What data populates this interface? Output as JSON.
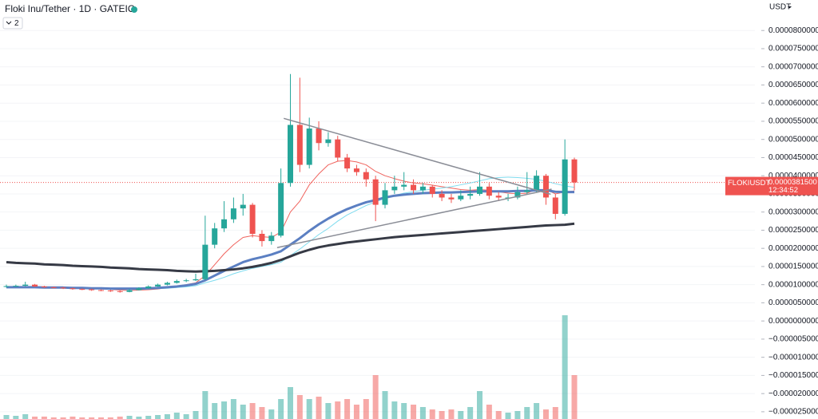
{
  "chart_data": {
    "type": "candlestick",
    "title": "Floki Inu/Tether · 1D · GATEIO",
    "indicators_toggle": "2",
    "currency": "USDT",
    "symbol": "FLOKIUSDT",
    "countdown": "12:34:52",
    "last_price": {
      "value": 3.815e-05,
      "label": "0.0000381500"
    },
    "up_color": "#26a69a",
    "down_color": "#ef5350",
    "grid": true,
    "ylim": [
      -2.7e-05,
      8.84e-05
    ],
    "yticks": [
      {
        "value": 8e-05,
        "label": "0.0000800000"
      },
      {
        "value": 7.5e-05,
        "label": "0.0000750000"
      },
      {
        "value": 7e-05,
        "label": "0.0000700000"
      },
      {
        "value": 6.5e-05,
        "label": "0.0000650000"
      },
      {
        "value": 6e-05,
        "label": "0.0000600000"
      },
      {
        "value": 5.5e-05,
        "label": "0.0000550000"
      },
      {
        "value": 5e-05,
        "label": "0.0000500000"
      },
      {
        "value": 4.5e-05,
        "label": "0.0000450000"
      },
      {
        "value": 4e-05,
        "label": "0.0000400000"
      },
      {
        "value": 3.5e-05,
        "label": "0.0000350000"
      },
      {
        "value": 3e-05,
        "label": "0.0000300000"
      },
      {
        "value": 2.5e-05,
        "label": "0.0000250000"
      },
      {
        "value": 2e-05,
        "label": "0.0000200000"
      },
      {
        "value": 1.5e-05,
        "label": "0.0000150000"
      },
      {
        "value": 1e-05,
        "label": "0.0000100000"
      },
      {
        "value": 5e-06,
        "label": "0.0000050000"
      },
      {
        "value": 0,
        "label": "0.0000000000"
      },
      {
        "value": -5e-06,
        "label": "−0.0000050000"
      },
      {
        "value": -1e-05,
        "label": "−0.0000100000"
      },
      {
        "value": -1.5e-05,
        "label": "−0.0000150000"
      },
      {
        "value": -2e-05,
        "label": "−0.0000200000"
      },
      {
        "value": -2.5e-05,
        "label": "−0.0000250000"
      }
    ],
    "open": [
      9.4e-06,
      9.6e-06,
      9.7e-06,
      1e-05,
      9.5e-06,
      9.3e-06,
      9.2e-06,
      9e-06,
      8.8e-06,
      8.7e-06,
      8.5e-06,
      8.4e-06,
      8.2e-06,
      8e-06,
      8.5e-06,
      9e-06,
      9.5e-06,
      1e-05,
      1.05e-05,
      1.1e-05,
      1.12e-05,
      1.15e-05,
      2.1e-05,
      2.55e-05,
      2.8e-05,
      3.1e-05,
      3.2e-05,
      2.4e-05,
      2.2e-05,
      2.35e-05,
      3.8e-05,
      5.4e-05,
      4.3e-05,
      5.3e-05,
      4.9e-05,
      5e-05,
      4.5e-05,
      4.2e-05,
      4.1e-05,
      3.9e-05,
      3.2e-05,
      3.6e-05,
      3.7e-05,
      3.75e-05,
      3.6e-05,
      3.7e-05,
      3.5e-05,
      3.4e-05,
      3.35e-05,
      3.45e-05,
      3.5e-05,
      3.7e-05,
      3.45e-05,
      3.4e-05,
      3.4e-05,
      3.55e-05,
      3.6e-05,
      4e-05,
      3.4e-05,
      2.95e-05,
      4.45e-05
    ],
    "high": [
      1e-05,
      1e-05,
      1.08e-05,
      1.02e-05,
      9.7e-06,
      9.5e-06,
      9.4e-06,
      9.2e-06,
      9e-06,
      8.9e-06,
      8.7e-06,
      8.6e-06,
      8.4e-06,
      8.8e-06,
      9.3e-06,
      9.8e-06,
      1.03e-05,
      1.08e-05,
      1.14e-05,
      1.16e-05,
      1.3e-05,
      2.9e-05,
      2.7e-05,
      3.3e-05,
      3.4e-05,
      3.5e-05,
      3.25e-05,
      2.5e-05,
      2.45e-05,
      4.2e-05,
      6.8e-05,
      6.7e-05,
      5.6e-05,
      5.5e-05,
      5.2e-05,
      5.1e-05,
      4.6e-05,
      4.3e-05,
      4.2e-05,
      4e-05,
      3.8e-05,
      4e-05,
      4.1e-05,
      3.9e-05,
      3.8e-05,
      3.75e-05,
      3.6e-05,
      3.5e-05,
      3.6e-05,
      3.7e-05,
      4.1e-05,
      3.8e-05,
      3.55e-05,
      3.5e-05,
      3.7e-05,
      4.1e-05,
      4.15e-05,
      4.05e-05,
      3.5e-05,
      5e-05,
      4.5e-05
    ],
    "low": [
      9.2e-06,
      9.4e-06,
      9.5e-06,
      9.3e-06,
      9.1e-06,
      9e-06,
      8.8e-06,
      8.6e-06,
      8.5e-06,
      8.3e-06,
      8.2e-06,
      8e-06,
      7.8e-06,
      7.9e-06,
      8.4e-06,
      8.9e-06,
      9.4e-06,
      9.8e-06,
      1.03e-05,
      1.07e-05,
      1.1e-05,
      1.12e-05,
      2e-05,
      2.45e-05,
      2.7e-05,
      2.9e-05,
      2.3e-05,
      2.05e-05,
      2.1e-05,
      2.3e-05,
      3.7e-05,
      4.1e-05,
      4.2e-05,
      4.7e-05,
      4.8e-05,
      4.4e-05,
      4.1e-05,
      4e-05,
      3.7e-05,
      2.75e-05,
      3.1e-05,
      3.5e-05,
      3.6e-05,
      3.5e-05,
      3.5e-05,
      3.4e-05,
      3.3e-05,
      3.25e-05,
      3.3e-05,
      3.35e-05,
      3.45e-05,
      3.35e-05,
      3.3e-05,
      3.3e-05,
      3.35e-05,
      3.5e-05,
      3.55e-05,
      3.2e-05,
      2.8e-05,
      2.9e-05,
      3.6e-05
    ],
    "close": [
      9.6e-06,
      9.7e-06,
      1e-05,
      9.5e-06,
      9.3e-06,
      9.2e-06,
      9e-06,
      8.8e-06,
      8.7e-06,
      8.5e-06,
      8.4e-06,
      8.2e-06,
      8e-06,
      8.5e-06,
      9e-06,
      9.5e-06,
      1e-05,
      1.05e-05,
      1.1e-05,
      1.12e-05,
      1.15e-05,
      2.1e-05,
      2.55e-05,
      2.8e-05,
      3.1e-05,
      3.2e-05,
      2.4e-05,
      2.2e-05,
      2.35e-05,
      3.8e-05,
      5.4e-05,
      4.3e-05,
      5.3e-05,
      4.9e-05,
      5e-05,
      4.5e-05,
      4.2e-05,
      4.1e-05,
      3.9e-05,
      3.2e-05,
      3.6e-05,
      3.7e-05,
      3.75e-05,
      3.6e-05,
      3.7e-05,
      3.5e-05,
      3.4e-05,
      3.35e-05,
      3.45e-05,
      3.5e-05,
      3.7e-05,
      3.45e-05,
      3.4e-05,
      3.4e-05,
      3.55e-05,
      3.6e-05,
      4e-05,
      3.4e-05,
      2.95e-05,
      4.45e-05,
      3.815e-05
    ],
    "volume": [
      5,
      4,
      6,
      3,
      3,
      2,
      2,
      3,
      2,
      2,
      2,
      2,
      3,
      4,
      3,
      4,
      5,
      6,
      8,
      6,
      10,
      35,
      20,
      22,
      25,
      18,
      20,
      15,
      12,
      25,
      40,
      30,
      25,
      28,
      20,
      22,
      25,
      18,
      25,
      55,
      35,
      22,
      20,
      18,
      15,
      12,
      10,
      12,
      10,
      15,
      35,
      18,
      10,
      8,
      10,
      15,
      20,
      12,
      15,
      130,
      55
    ],
    "moving_averages": [
      {
        "color": "#f0635d",
        "width": 1,
        "values": [
          9.4e-06,
          9.5e-06,
          9.5e-06,
          9.5e-06,
          9.4e-06,
          9.3e-06,
          9.2e-06,
          9.1e-06,
          9e-06,
          8.9e-06,
          8.8e-06,
          8.7e-06,
          8.5e-06,
          8.4e-06,
          8.5e-06,
          8.6e-06,
          8.8e-06,
          9.2e-06,
          9.6e-06,
          1e-05,
          1.05e-05,
          1.25e-05,
          1.55e-05,
          1.85e-05,
          2.1e-05,
          2.3e-05,
          2.35e-05,
          2.32e-05,
          2.3e-05,
          2.45e-05,
          3e-05,
          3.3e-05,
          3.75e-05,
          4.05e-05,
          4.3e-05,
          4.4e-05,
          4.42e-05,
          4.38e-05,
          4.3e-05,
          4.12e-05,
          4e-05,
          3.92e-05,
          3.85e-05,
          3.8e-05,
          3.78e-05,
          3.74e-05,
          3.7e-05,
          3.66e-05,
          3.62e-05,
          3.6e-05,
          3.62e-05,
          3.6e-05,
          3.56e-05,
          3.52e-05,
          3.5e-05,
          3.52e-05,
          3.62e-05,
          3.62e-05,
          3.5e-05,
          3.55e-05,
          3.58e-05
        ]
      },
      {
        "color": "#7fdcef",
        "width": 1,
        "values": [
          9.2e-06,
          9.2e-06,
          9.2e-06,
          9.2e-06,
          9.2e-06,
          9.1e-06,
          9.1e-06,
          9e-06,
          9e-06,
          8.9e-06,
          8.9e-06,
          8.8e-06,
          8.7e-06,
          8.7e-06,
          8.7e-06,
          8.8e-06,
          8.9e-06,
          9e-06,
          9.2e-06,
          9.4e-06,
          9.7e-06,
          1.05e-05,
          1.12e-05,
          1.2e-05,
          1.3e-05,
          1.38e-05,
          1.45e-05,
          1.5e-05,
          1.55e-05,
          1.62e-05,
          1.8e-05,
          1.98e-05,
          2.18e-05,
          2.38e-05,
          2.55e-05,
          2.75e-05,
          2.92e-05,
          3.05e-05,
          3.18e-05,
          3.28e-05,
          3.38e-05,
          3.46e-05,
          3.52e-05,
          3.56e-05,
          3.6e-05,
          3.63e-05,
          3.66e-05,
          3.7e-05,
          3.75e-05,
          3.8e-05,
          3.86e-05,
          3.92e-05,
          3.95e-05,
          3.96e-05,
          3.95e-05,
          3.93e-05,
          3.9e-05,
          3.85e-05,
          3.78e-05,
          3.72e-05,
          3.68e-05
        ]
      },
      {
        "color": "#5b7fc2",
        "width": 3,
        "values": [
          9.3e-06,
          9.3e-06,
          9.3e-06,
          9.3e-06,
          9.2e-06,
          9.2e-06,
          9.2e-06,
          9.1e-06,
          9.1e-06,
          9e-06,
          9e-06,
          8.9e-06,
          8.9e-06,
          8.9e-06,
          8.9e-06,
          9e-06,
          9.1e-06,
          9.3e-06,
          9.5e-06,
          9.8e-06,
          1.02e-05,
          1.12e-05,
          1.25e-05,
          1.38e-05,
          1.5e-05,
          1.62e-05,
          1.7e-05,
          1.76e-05,
          1.83e-05,
          1.92e-05,
          2.1e-05,
          2.28e-05,
          2.48e-05,
          2.66e-05,
          2.82e-05,
          2.96e-05,
          3.08e-05,
          3.18e-05,
          3.27e-05,
          3.33e-05,
          3.4e-05,
          3.45e-05,
          3.48e-05,
          3.5e-05,
          3.52e-05,
          3.53e-05,
          3.54e-05,
          3.54e-05,
          3.55e-05,
          3.56e-05,
          3.57e-05,
          3.57e-05,
          3.57e-05,
          3.57e-05,
          3.58e-05,
          3.58e-05,
          3.6e-05,
          3.6e-05,
          3.56e-05,
          3.55e-05,
          3.55e-05
        ]
      },
      {
        "color": "#363a45",
        "width": 3,
        "values": [
          1.62e-05,
          1.6e-05,
          1.59e-05,
          1.58e-05,
          1.56e-05,
          1.55e-05,
          1.54e-05,
          1.52e-05,
          1.51e-05,
          1.5e-05,
          1.49e-05,
          1.47e-05,
          1.46e-05,
          1.45e-05,
          1.43e-05,
          1.42e-05,
          1.41e-05,
          1.4e-05,
          1.38e-05,
          1.37e-05,
          1.36e-05,
          1.37e-05,
          1.38e-05,
          1.4e-05,
          1.42e-05,
          1.45e-05,
          1.49e-05,
          1.54e-05,
          1.6e-05,
          1.68e-05,
          1.78e-05,
          1.88e-05,
          1.96e-05,
          2.03e-05,
          2.08e-05,
          2.12e-05,
          2.16e-05,
          2.19e-05,
          2.22e-05,
          2.25e-05,
          2.28e-05,
          2.31e-05,
          2.33e-05,
          2.35e-05,
          2.37e-05,
          2.39e-05,
          2.41e-05,
          2.43e-05,
          2.45e-05,
          2.47e-05,
          2.49e-05,
          2.51e-05,
          2.53e-05,
          2.55e-05,
          2.57e-05,
          2.59e-05,
          2.61e-05,
          2.63e-05,
          2.64e-05,
          2.65e-05,
          2.68e-05
        ]
      }
    ],
    "trend_lines": [
      {
        "color": "#8a8d96",
        "x": [
          29.3,
          57.5
        ],
        "values": [
          5.58e-05,
          3.49e-05
        ]
      },
      {
        "color": "#8a8d96",
        "x": [
          28.6,
          57.6
        ],
        "values": [
          2.02e-05,
          3.63e-05
        ]
      }
    ]
  }
}
